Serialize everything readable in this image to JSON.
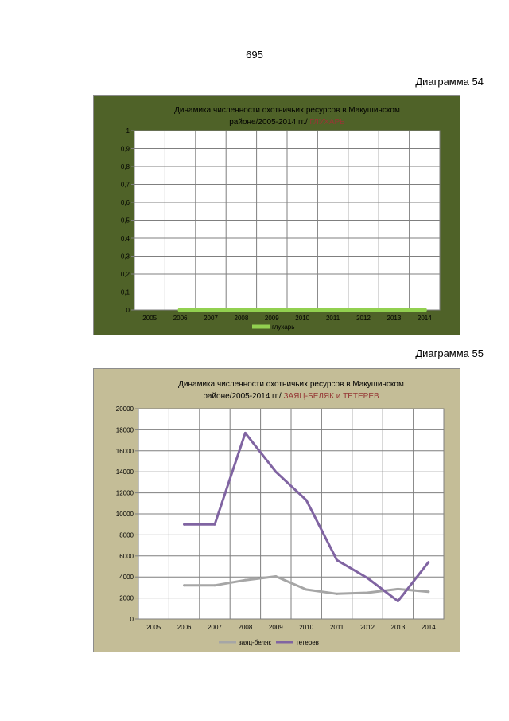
{
  "page": {
    "number": "695"
  },
  "charts": [
    {
      "label": "Диаграмма 54"
    },
    {
      "label": "Диаграмма 55"
    }
  ],
  "colors": {
    "chart1_background": "#4f6228",
    "chart1_series": "#92d050",
    "chart2_background": "#c4bd97",
    "chart2_highlight": "#953735",
    "chart2_series_hare": "#a6a6a6",
    "chart2_series_grouse": "#8064a2"
  },
  "chart_data": [
    {
      "type": "line",
      "title_line1": "Динамика численности охотничьих ресурсов  в  Макушинском",
      "title_line2": "районе/2005-2014 гг./",
      "title_highlight": "ГЛУХАРЬ",
      "categories": [
        "2005",
        "2006",
        "2007",
        "2008",
        "2009",
        "2010",
        "2011",
        "2012",
        "2013",
        "2014"
      ],
      "ylim": [
        0,
        1
      ],
      "yticks": [
        "0",
        "0,1",
        "0,2",
        "0,3",
        "0,4",
        "0,5",
        "0,6",
        "0,7",
        "0,8",
        "0,9",
        "1"
      ],
      "grid": true,
      "legend_position": "bottom",
      "series": [
        {
          "name": "глухарь",
          "values": [
            null,
            0,
            0,
            0,
            0,
            0,
            0,
            0,
            0,
            0
          ]
        }
      ]
    },
    {
      "type": "line",
      "title_line1": "Динамика численности  охотничьих ресурсов   в  Макушинском",
      "title_line2": "районе/2005-2014  гг./",
      "title_highlight": "ЗАЯЦ-БЕЛЯК и ТЕТЕРЕВ",
      "categories": [
        "2005",
        "2006",
        "2007",
        "2008",
        "2009",
        "2010",
        "2011",
        "2012",
        "2013",
        "2014"
      ],
      "ylim": [
        0,
        20000
      ],
      "yticks": [
        "0",
        "2000",
        "4000",
        "6000",
        "8000",
        "10000",
        "12000",
        "14000",
        "16000",
        "18000",
        "20000"
      ],
      "grid": true,
      "legend_position": "bottom",
      "series": [
        {
          "name": "заяц-беляк",
          "values": [
            null,
            3200,
            3200,
            3700,
            4050,
            2800,
            2400,
            2500,
            2850,
            2600
          ]
        },
        {
          "name": "тетерев",
          "values": [
            null,
            9000,
            9000,
            17700,
            14000,
            11300,
            5600,
            3900,
            1700,
            5400
          ]
        }
      ]
    }
  ]
}
